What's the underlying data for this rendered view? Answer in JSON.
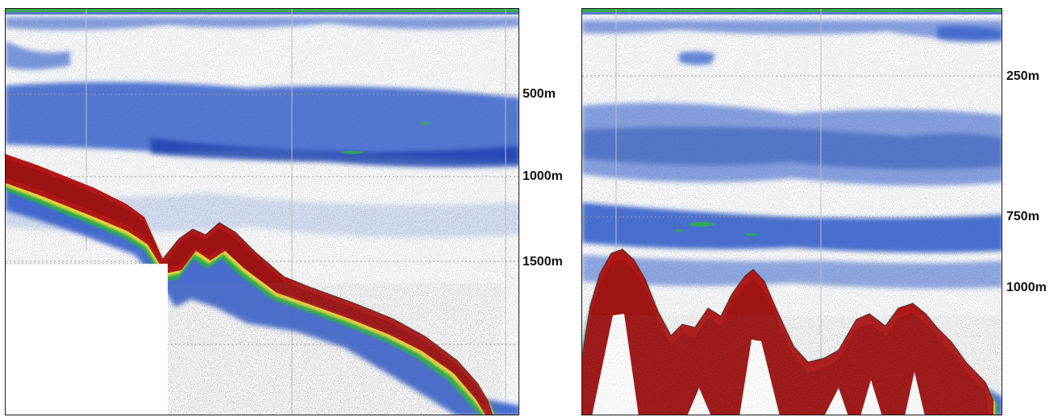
{
  "colors": {
    "background": "#ffffff",
    "scatter_noise": "#555555",
    "weak_echo_blue": "#2a57c8",
    "mid_echo_green": "#2fae4a",
    "strong_echo_yellow": "#e8d23a",
    "seabed_red": "#b01818",
    "seabed_dark_red": "#8e0f0f",
    "depth_gridline": "#9a9a9a"
  },
  "left_panel": {
    "depth_labels": [
      "500m",
      "1000m",
      "1500m"
    ]
  },
  "right_panel": {
    "depth_labels": [
      "250m",
      "750m",
      "1000m"
    ]
  }
}
